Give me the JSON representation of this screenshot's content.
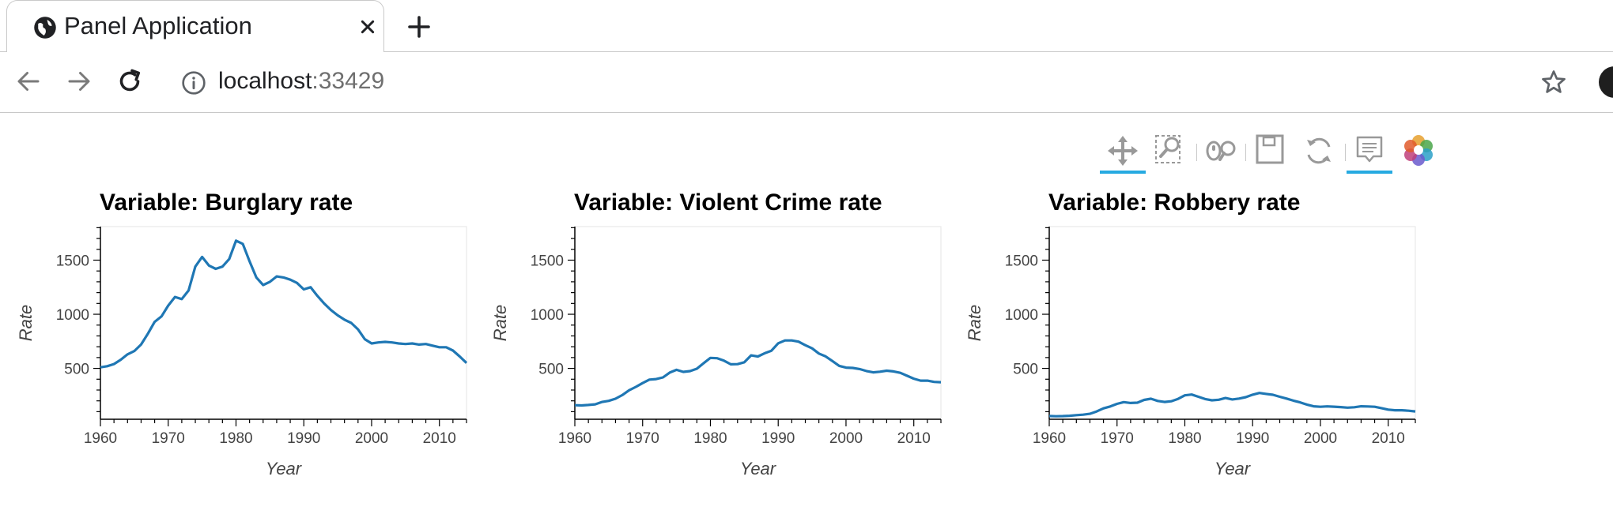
{
  "browser": {
    "tab_title": "Panel Application",
    "address_host": "localhost",
    "address_port": ":33429"
  },
  "bokeh_toolbar": {
    "tools": [
      "pan-tool",
      "box-zoom-tool",
      "wheel-zoom-tool",
      "save-tool",
      "reset-tool",
      "hover-tool",
      "bokeh-logo"
    ]
  },
  "chart_data": [
    {
      "type": "line",
      "title": "Variable: Burglary rate",
      "xlabel": "Year",
      "ylabel": "Rate",
      "xlim": [
        1960,
        2014
      ],
      "ylim": [
        30,
        1810
      ],
      "xticks": [
        1960,
        1970,
        1980,
        1990,
        2000,
        2010
      ],
      "yticks": [
        500,
        1000,
        1500
      ],
      "color": "#1f77b4",
      "x": [
        1960,
        1961,
        1962,
        1963,
        1964,
        1965,
        1966,
        1967,
        1968,
        1969,
        1970,
        1971,
        1972,
        1973,
        1974,
        1975,
        1976,
        1977,
        1978,
        1979,
        1980,
        1981,
        1982,
        1983,
        1984,
        1985,
        1986,
        1987,
        1988,
        1989,
        1990,
        1991,
        1992,
        1993,
        1994,
        1995,
        1996,
        1997,
        1998,
        1999,
        2000,
        2001,
        2002,
        2003,
        2004,
        2005,
        2006,
        2007,
        2008,
        2009,
        2010,
        2011,
        2012,
        2013,
        2014
      ],
      "y": [
        510,
        520,
        540,
        580,
        630,
        660,
        720,
        820,
        930,
        980,
        1080,
        1160,
        1140,
        1220,
        1440,
        1530,
        1450,
        1420,
        1440,
        1510,
        1680,
        1650,
        1490,
        1340,
        1270,
        1300,
        1350,
        1340,
        1320,
        1290,
        1230,
        1250,
        1170,
        1100,
        1040,
        990,
        950,
        920,
        860,
        770,
        730,
        740,
        745,
        740,
        730,
        725,
        730,
        720,
        725,
        710,
        695,
        695,
        665,
        610,
        550
      ]
    },
    {
      "type": "line",
      "title": "Variable: Violent Crime rate",
      "xlabel": "Year",
      "ylabel": "Rate",
      "xlim": [
        1960,
        2014
      ],
      "ylim": [
        30,
        1810
      ],
      "xticks": [
        1960,
        1970,
        1980,
        1990,
        2000,
        2010
      ],
      "yticks": [
        500,
        1000,
        1500
      ],
      "color": "#1f77b4",
      "x": [
        1960,
        1961,
        1962,
        1963,
        1964,
        1965,
        1966,
        1967,
        1968,
        1969,
        1970,
        1971,
        1972,
        1973,
        1974,
        1975,
        1976,
        1977,
        1978,
        1979,
        1980,
        1981,
        1982,
        1983,
        1984,
        1985,
        1986,
        1987,
        1988,
        1989,
        1990,
        1991,
        1992,
        1993,
        1994,
        1995,
        1996,
        1997,
        1998,
        1999,
        2000,
        2001,
        2002,
        2003,
        2004,
        2005,
        2006,
        2007,
        2008,
        2009,
        2010,
        2011,
        2012,
        2013,
        2014
      ],
      "y": [
        160,
        158,
        162,
        168,
        190,
        200,
        220,
        253,
        298,
        329,
        364,
        396,
        401,
        417,
        461,
        487,
        468,
        475,
        497,
        548,
        597,
        594,
        571,
        538,
        539,
        557,
        620,
        610,
        640,
        663,
        732,
        758,
        758,
        747,
        714,
        685,
        637,
        611,
        568,
        523,
        507,
        504,
        494,
        476,
        463,
        469,
        479,
        472,
        459,
        432,
        405,
        387,
        387,
        375,
        372
      ]
    },
    {
      "type": "line",
      "title": "Variable: Robbery rate",
      "xlabel": "Year",
      "ylabel": "Rate",
      "xlim": [
        1960,
        2014
      ],
      "ylim": [
        30,
        1810
      ],
      "xticks": [
        1960,
        1970,
        1980,
        1990,
        2000,
        2010
      ],
      "yticks": [
        500,
        1000,
        1500
      ],
      "color": "#1f77b4",
      "x": [
        1960,
        1961,
        1962,
        1963,
        1964,
        1965,
        1966,
        1967,
        1968,
        1969,
        1970,
        1971,
        1972,
        1973,
        1974,
        1975,
        1976,
        1977,
        1978,
        1979,
        1980,
        1981,
        1982,
        1983,
        1984,
        1985,
        1986,
        1987,
        1988,
        1989,
        1990,
        1991,
        1992,
        1993,
        1994,
        1995,
        1996,
        1997,
        1998,
        1999,
        2000,
        2001,
        2002,
        2003,
        2004,
        2005,
        2006,
        2007,
        2008,
        2009,
        2010,
        2011,
        2012,
        2013,
        2014
      ],
      "y": [
        60,
        58,
        59,
        62,
        68,
        72,
        80,
        102,
        131,
        148,
        172,
        188,
        180,
        183,
        209,
        220,
        199,
        190,
        196,
        218,
        251,
        258,
        238,
        217,
        205,
        210,
        226,
        213,
        221,
        234,
        257,
        273,
        264,
        256,
        238,
        221,
        202,
        186,
        166,
        150,
        145,
        149,
        146,
        142,
        137,
        141,
        150,
        148,
        145,
        133,
        119,
        113,
        113,
        109,
        102
      ]
    }
  ]
}
